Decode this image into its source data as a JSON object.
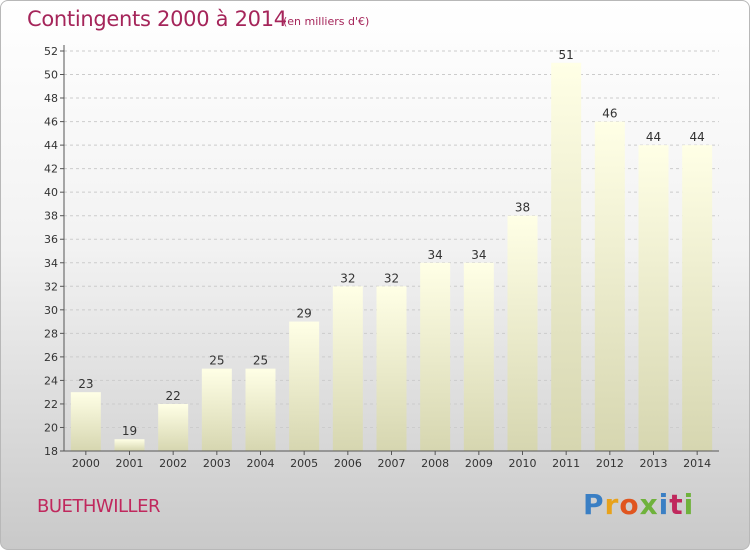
{
  "header": {
    "title": "Contingents 2000 à 2014",
    "subtitle": "(en milliers d'€)"
  },
  "footer": {
    "commune": "BUETHWILLER",
    "logo_text": "Proxiti"
  },
  "colors": {
    "title": "#a5255a",
    "bar_top": "#ffffe6",
    "bar_bottom": "#d6d6b0"
  },
  "chart_data": {
    "type": "bar",
    "title": "Contingents 2000 à 2014",
    "subtitle": "(en milliers d'€)",
    "categories": [
      "2000",
      "2001",
      "2002",
      "2003",
      "2004",
      "2005",
      "2006",
      "2007",
      "2008",
      "2009",
      "2010",
      "2011",
      "2012",
      "2013",
      "2014"
    ],
    "values": [
      23,
      19,
      22,
      25,
      25,
      29,
      32,
      32,
      34,
      34,
      38,
      51,
      46,
      44,
      44
    ],
    "data_labels": [
      "23",
      "19",
      "22",
      "25",
      "25",
      "29",
      "32",
      "32",
      "34",
      "34",
      "38",
      "51",
      "46",
      "44",
      "44"
    ],
    "y_ticks": [
      "18",
      "20",
      "22",
      "24",
      "26",
      "28",
      "30",
      "32",
      "34",
      "36",
      "38",
      "40",
      "42",
      "44",
      "46",
      "48",
      "50",
      "52"
    ],
    "ylim": [
      18,
      52
    ],
    "grid": "horizontal dashed",
    "xlabel": "",
    "ylabel": ""
  }
}
